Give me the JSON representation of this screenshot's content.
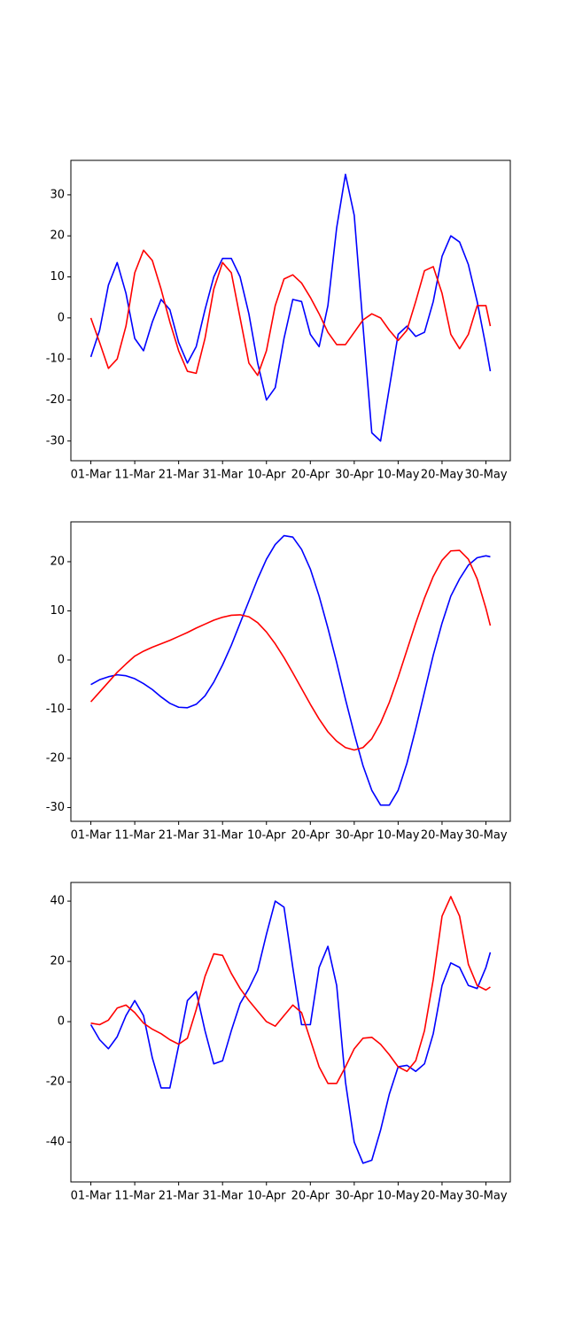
{
  "chart_data": [
    {
      "type": "line",
      "x": [
        "01-Mar",
        "03-Mar",
        "05-Mar",
        "07-Mar",
        "09-Mar",
        "11-Mar",
        "13-Mar",
        "15-Mar",
        "17-Mar",
        "19-Mar",
        "21-Mar",
        "23-Mar",
        "25-Mar",
        "27-Mar",
        "29-Mar",
        "31-Mar",
        "02-Apr",
        "04-Apr",
        "06-Apr",
        "08-Apr",
        "10-Apr",
        "12-Apr",
        "14-Apr",
        "16-Apr",
        "18-Apr",
        "20-Apr",
        "22-Apr",
        "24-Apr",
        "26-Apr",
        "28-Apr",
        "30-Apr",
        "02-May",
        "04-May",
        "06-May",
        "08-May",
        "10-May",
        "12-May",
        "14-May",
        "16-May",
        "18-May",
        "20-May",
        "22-May",
        "24-May",
        "26-May",
        "28-May",
        "30-May",
        "31-May"
      ],
      "xticks": [
        "01-Mar",
        "11-Mar",
        "21-Mar",
        "31-Mar",
        "10-Apr",
        "20-Apr",
        "30-Apr",
        "10-May",
        "20-May",
        "30-May"
      ],
      "ylim": [
        -34.8,
        38.4
      ],
      "yticks": [
        -30,
        -20,
        -10,
        0,
        10,
        20,
        30
      ],
      "series": [
        {
          "name": "blue",
          "color": "#0000ff",
          "values": [
            -9.5,
            -3,
            8,
            13.5,
            6,
            -5,
            -8,
            -1,
            4.5,
            2,
            -6,
            -11,
            -7,
            2,
            10,
            14.5,
            14.5,
            10,
            1,
            -11,
            -20,
            -17,
            -5,
            4.5,
            4,
            -4,
            -7,
            3,
            22,
            35,
            25,
            -2,
            -28,
            -30,
            -17,
            -4,
            -2,
            -4.5,
            -3.5,
            4,
            15,
            20,
            18.5,
            13,
            4,
            -7,
            -13
          ]
        },
        {
          "name": "red",
          "color": "#ff0000",
          "values": [
            0,
            -6,
            -12.3,
            -10,
            -2,
            11,
            16.5,
            14,
            7,
            -1,
            -8,
            -13,
            -13.5,
            -5,
            7,
            13.5,
            11,
            0,
            -11,
            -14,
            -8,
            3,
            9.5,
            10.5,
            8.5,
            5,
            1,
            -3.5,
            -6.5,
            -6.5,
            -3.5,
            -0.5,
            1,
            0,
            -3,
            -5.5,
            -3,
            4,
            11.5,
            12.5,
            6,
            -4,
            -7.5,
            -4,
            3,
            3,
            -2
          ]
        }
      ]
    },
    {
      "type": "line",
      "x": [
        "01-Mar",
        "03-Mar",
        "05-Mar",
        "07-Mar",
        "09-Mar",
        "11-Mar",
        "13-Mar",
        "15-Mar",
        "17-Mar",
        "19-Mar",
        "21-Mar",
        "23-Mar",
        "25-Mar",
        "27-Mar",
        "29-Mar",
        "31-Mar",
        "02-Apr",
        "04-Apr",
        "06-Apr",
        "08-Apr",
        "10-Apr",
        "12-Apr",
        "14-Apr",
        "16-Apr",
        "18-Apr",
        "20-Apr",
        "22-Apr",
        "24-Apr",
        "26-Apr",
        "28-Apr",
        "30-Apr",
        "02-May",
        "04-May",
        "06-May",
        "08-May",
        "10-May",
        "12-May",
        "14-May",
        "16-May",
        "18-May",
        "20-May",
        "22-May",
        "24-May",
        "26-May",
        "28-May",
        "30-May",
        "31-May"
      ],
      "xticks": [
        "01-Mar",
        "11-Mar",
        "21-Mar",
        "31-Mar",
        "10-Apr",
        "20-Apr",
        "30-Apr",
        "10-May",
        "20-May",
        "30-May"
      ],
      "ylim": [
        -32.8,
        28.1
      ],
      "yticks": [
        -30,
        -20,
        -10,
        0,
        10,
        20
      ],
      "series": [
        {
          "name": "blue",
          "color": "#0000ff",
          "values": [
            -5,
            -4,
            -3.4,
            -3,
            -3.2,
            -3.8,
            -4.8,
            -6,
            -7.5,
            -8.8,
            -9.6,
            -9.7,
            -9,
            -7.3,
            -4.5,
            -1,
            3,
            7.5,
            12,
            16.5,
            20.5,
            23.5,
            25.3,
            25,
            22.5,
            18.5,
            13,
            6.5,
            -0.5,
            -8,
            -15,
            -21.5,
            -26.5,
            -29.5,
            -29.5,
            -26.5,
            -21,
            -14,
            -6.5,
            1,
            7.5,
            13,
            16.5,
            19.3,
            20.8,
            21.2,
            21
          ]
        },
        {
          "name": "red",
          "color": "#ff0000",
          "values": [
            -8.5,
            -6.5,
            -4.5,
            -2.5,
            -0.8,
            0.8,
            1.8,
            2.6,
            3.3,
            4,
            4.8,
            5.6,
            6.5,
            7.3,
            8.1,
            8.7,
            9.1,
            9.2,
            8.8,
            7.6,
            5.7,
            3.3,
            0.5,
            -2.6,
            -5.8,
            -9,
            -12,
            -14.6,
            -16.5,
            -17.8,
            -18.3,
            -17.8,
            -16,
            -12.8,
            -8.6,
            -3.5,
            2,
            7.5,
            12.6,
            17,
            20.3,
            22.2,
            22.3,
            20.5,
            16.5,
            10.5,
            7
          ]
        }
      ]
    },
    {
      "type": "line",
      "x": [
        "01-Mar",
        "03-Mar",
        "05-Mar",
        "07-Mar",
        "09-Mar",
        "11-Mar",
        "13-Mar",
        "15-Mar",
        "17-Mar",
        "19-Mar",
        "21-Mar",
        "23-Mar",
        "25-Mar",
        "27-Mar",
        "29-Mar",
        "31-Mar",
        "02-Apr",
        "04-Apr",
        "06-Apr",
        "08-Apr",
        "10-Apr",
        "12-Apr",
        "14-Apr",
        "16-Apr",
        "18-Apr",
        "20-Apr",
        "22-Apr",
        "24-Apr",
        "26-Apr",
        "28-Apr",
        "30-Apr",
        "02-May",
        "04-May",
        "06-May",
        "08-May",
        "10-May",
        "12-May",
        "14-May",
        "16-May",
        "18-May",
        "20-May",
        "22-May",
        "24-May",
        "26-May",
        "28-May",
        "30-May",
        "31-May"
      ],
      "xticks": [
        "01-Mar",
        "11-Mar",
        "21-Mar",
        "31-Mar",
        "10-Apr",
        "20-Apr",
        "30-Apr",
        "10-May",
        "20-May",
        "30-May"
      ],
      "ylim": [
        -53.2,
        46.2
      ],
      "yticks": [
        -40,
        -20,
        0,
        20,
        40
      ],
      "series": [
        {
          "name": "blue",
          "color": "#0000ff",
          "values": [
            -1,
            -6,
            -9,
            -5,
            2,
            7,
            2,
            -12,
            -22,
            -22,
            -8,
            7,
            10,
            -3,
            -14,
            -13,
            -3,
            6,
            11,
            17,
            29,
            40,
            38,
            18,
            -1,
            -1,
            18,
            25,
            12,
            -20,
            -40,
            -47,
            -46,
            -36,
            -24,
            -15,
            -14.5,
            -16.5,
            -14,
            -4,
            12,
            19.5,
            18,
            12,
            11,
            18,
            23
          ]
        },
        {
          "name": "red",
          "color": "#ff0000",
          "values": [
            -0.5,
            -1,
            0.5,
            4.5,
            5.5,
            3,
            -0.5,
            -2.5,
            -4,
            -6,
            -7.5,
            -5.5,
            4,
            15,
            22.5,
            22,
            16,
            11,
            7,
            3.5,
            0,
            -1.5,
            2,
            5.5,
            3,
            -6,
            -15,
            -20.5,
            -20.5,
            -15,
            -9,
            -5.5,
            -5.2,
            -7.5,
            -11,
            -15,
            -16.5,
            -13,
            -3,
            14,
            35,
            41.5,
            35,
            19,
            12,
            10.5,
            11.5
          ]
        }
      ]
    }
  ]
}
